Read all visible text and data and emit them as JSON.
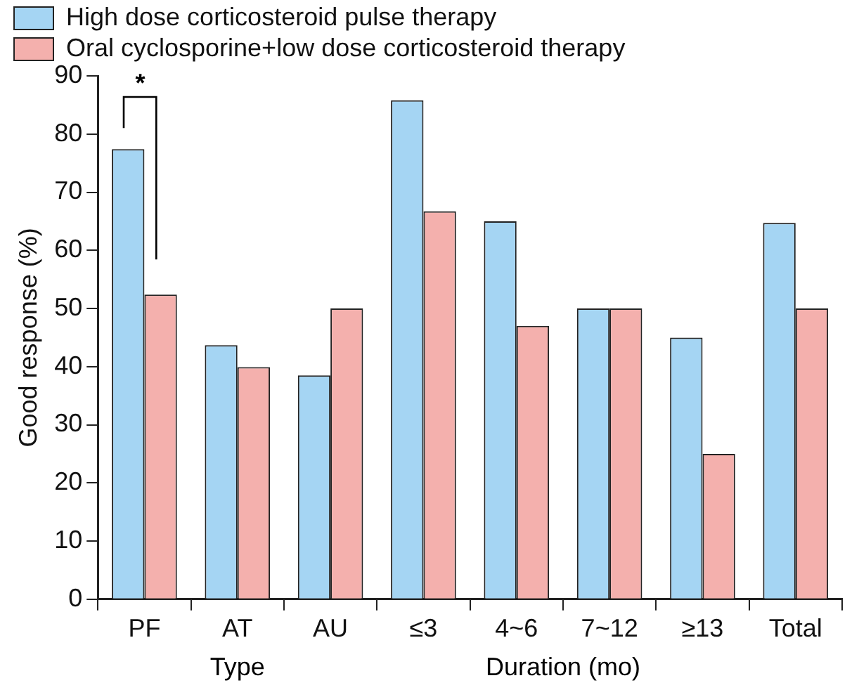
{
  "chart_data": {
    "type": "bar",
    "ylabel": "Good response (%)",
    "categories": [
      "PF",
      "AT",
      "AU",
      "≤3",
      "4~6",
      "7~12",
      "≥13",
      "Total"
    ],
    "series": [
      {
        "name": "High dose corticosteroid pulse therapy",
        "color": "#a5d5f3",
        "values": [
          77.4,
          43.7,
          38.5,
          85.8,
          65.0,
          50.0,
          45.0,
          64.7
        ]
      },
      {
        "name": "Oral cyclosporine+low dose corticosteroid therapy",
        "color": "#f4b0ad",
        "values": [
          52.4,
          39.9,
          50.0,
          66.7,
          47.0,
          50.0,
          25.0,
          50.0
        ]
      }
    ],
    "annotations": [
      "*",
      "Type",
      "Duration (mo)"
    ],
    "ylim": [
      0,
      90
    ],
    "yticks": [
      0,
      10,
      20,
      30,
      40,
      50,
      60,
      70,
      80,
      90
    ],
    "grid": false,
    "legend": "top left"
  }
}
